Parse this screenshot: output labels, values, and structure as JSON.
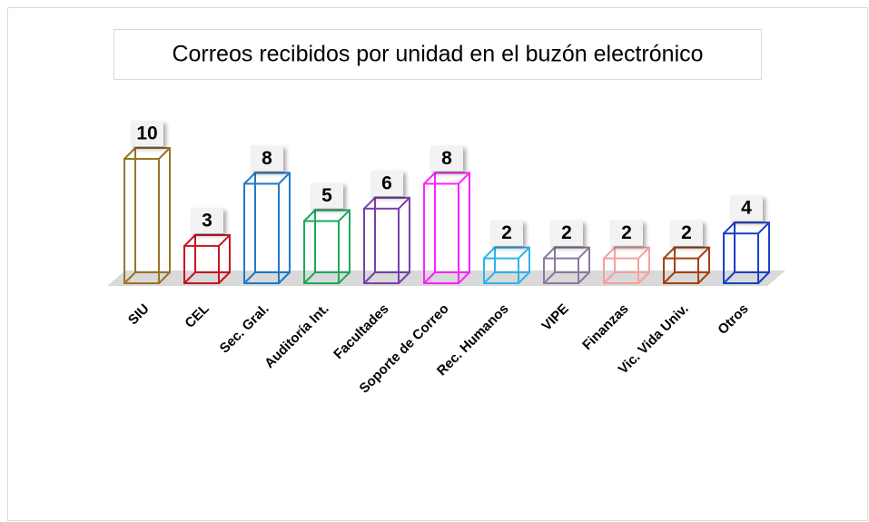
{
  "chart_data": {
    "type": "bar3d",
    "title": "Correos recibidos por unidad en el buzón electrónico",
    "categories": [
      "SIU",
      "CEL",
      "Sec. Gral.",
      "Auditoría Int.",
      "Facultades",
      "Soporte de Correo",
      "Rec. Humanos",
      "VIPE",
      "Finanzas",
      "Vic. Vida Univ.",
      "Otros"
    ],
    "values": [
      10,
      3,
      8,
      5,
      6,
      8,
      2,
      2,
      2,
      2,
      4
    ],
    "colors": [
      "#9a7424",
      "#c8141e",
      "#1f7ac8",
      "#1aaa5a",
      "#7b3fa8",
      "#ff22ff",
      "#29b6ea",
      "#8b7a9b",
      "#f4a0a0",
      "#a3420f",
      "#1a40c8"
    ]
  }
}
